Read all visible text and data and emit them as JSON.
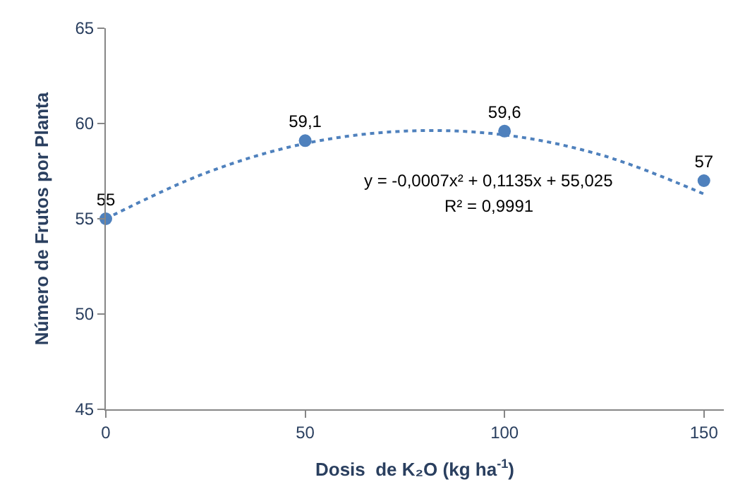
{
  "chart_data": {
    "type": "scatter",
    "x": [
      0,
      50,
      100,
      150
    ],
    "xlabel": "Dosis  de K₂O (kg ha$^{-1}$)",
    "ylabel": "Número de Frutos por Planta",
    "xlim": [
      0,
      155
    ],
    "xticks": [
      0,
      50,
      100,
      150
    ],
    "ylim": [
      45,
      65
    ],
    "yticks": [
      45,
      50,
      55,
      60,
      65
    ],
    "series": [
      {
        "color": "#4f81bd",
        "marker": "circle",
        "values": [
          55,
          59.1,
          59.6,
          57
        ],
        "value_labels": [
          "55",
          "59,1",
          "59,6",
          "57"
        ]
      },
      {
        "type": "line",
        "color": "#4f81bd",
        "marker": "none",
        "line_style": "dotted",
        "x": [
          0,
          25,
          50,
          75,
          100,
          125,
          150
        ],
        "values": [
          55.0,
          57.4,
          58.95,
          59.6,
          59.4,
          58.3,
          56.3
        ]
      }
    ],
    "annotations": [
      "y = -0,0007x² + 0,1135x + 55,025",
      "R² = 0,9991"
    ]
  }
}
